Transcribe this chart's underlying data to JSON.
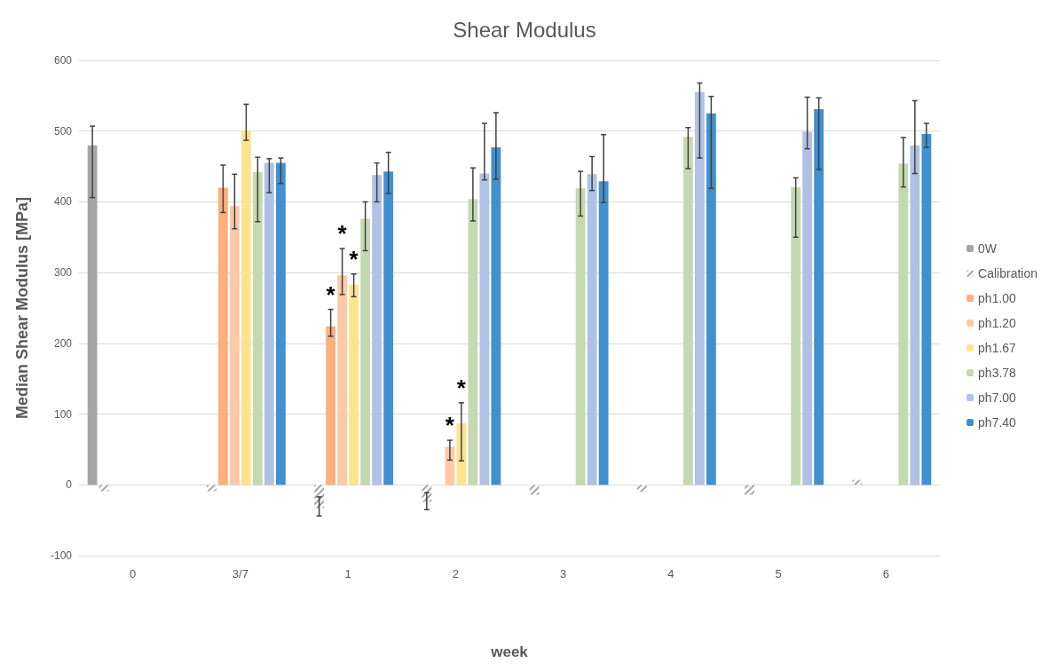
{
  "chart_data": {
    "type": "bar",
    "title": "Shear Modulus",
    "xlabel": "week",
    "ylabel": "Median Shear Modulus [MPa]",
    "categories": [
      "0",
      "3/7",
      "1",
      "2",
      "3",
      "4",
      "5",
      "6"
    ],
    "ylim": [
      -100,
      600
    ],
    "yticks": [
      -100,
      0,
      100,
      200,
      300,
      400,
      500,
      600
    ],
    "grid": "y",
    "legend": "right",
    "series": [
      {
        "name": "0W",
        "color": "#a5a5a5",
        "values": [
          480,
          null,
          null,
          null,
          null,
          null,
          null,
          null
        ],
        "errors": [
          [
            406,
            507
          ],
          null,
          null,
          null,
          null,
          null,
          null,
          null
        ]
      },
      {
        "name": "Calibration",
        "color": "#a6a6a6",
        "values": [
          -9,
          -9,
          -33,
          -24,
          -14,
          -10,
          -14,
          7
        ],
        "errors": [
          null,
          null,
          [
            -44,
            -17
          ],
          [
            -35,
            -11
          ],
          null,
          null,
          null,
          null
        ]
      },
      {
        "name": "ph1.00",
        "color": "#fbb07c",
        "values": [
          null,
          420,
          224,
          null,
          null,
          null,
          null,
          null
        ],
        "errors": [
          null,
          [
            385,
            452
          ],
          [
            210,
            248
          ],
          null,
          null,
          null,
          null,
          null
        ]
      },
      {
        "name": "ph1.20",
        "color": "#fdc9a6",
        "values": [
          null,
          394,
          296,
          54,
          null,
          null,
          null,
          null
        ],
        "errors": [
          null,
          [
            362,
            439
          ],
          [
            269,
            334
          ],
          [
            35,
            63
          ],
          null,
          null,
          null,
          null
        ]
      },
      {
        "name": "ph1.67",
        "color": "#fee38f",
        "values": [
          null,
          501,
          283,
          87,
          null,
          null,
          null,
          null
        ],
        "errors": [
          null,
          [
            487,
            538
          ],
          [
            266,
            298
          ],
          [
            34,
            116
          ],
          null,
          null,
          null,
          null
        ]
      },
      {
        "name": "ph3.78",
        "color": "#c5d9b0",
        "values": [
          null,
          442,
          376,
          404,
          419,
          492,
          421,
          454
        ],
        "errors": [
          null,
          [
            372,
            463
          ],
          [
            331,
            400
          ],
          [
            373,
            448
          ],
          [
            380,
            443
          ],
          [
            447,
            505
          ],
          [
            350,
            434
          ],
          [
            421,
            491
          ]
        ]
      },
      {
        "name": "ph7.00",
        "color": "#b0c1e5",
        "values": [
          null,
          455,
          438,
          440,
          439,
          555,
          499,
          480
        ],
        "errors": [
          null,
          [
            413,
            461
          ],
          [
            400,
            455
          ],
          [
            431,
            511
          ],
          [
            416,
            464
          ],
          [
            462,
            568
          ],
          [
            475,
            548
          ],
          [
            440,
            543
          ]
        ]
      },
      {
        "name": "ph7.40",
        "color": "#4190d0",
        "values": [
          null,
          455,
          443,
          477,
          429,
          525,
          531,
          496
        ],
        "errors": [
          null,
          [
            426,
            462
          ],
          [
            412,
            470
          ],
          [
            432,
            526
          ],
          [
            399,
            495
          ],
          [
            419,
            549
          ],
          [
            446,
            547
          ],
          [
            477,
            511
          ]
        ]
      }
    ],
    "annotations": [
      {
        "text": "*",
        "x": "1",
        "y": 224
      },
      {
        "text": "*",
        "x": "1",
        "y": 296
      },
      {
        "text": "*",
        "x": "1",
        "y": 283
      },
      {
        "text": "*",
        "x": "2",
        "y": 54
      },
      {
        "text": "*",
        "x": "2",
        "y": 87
      }
    ]
  }
}
